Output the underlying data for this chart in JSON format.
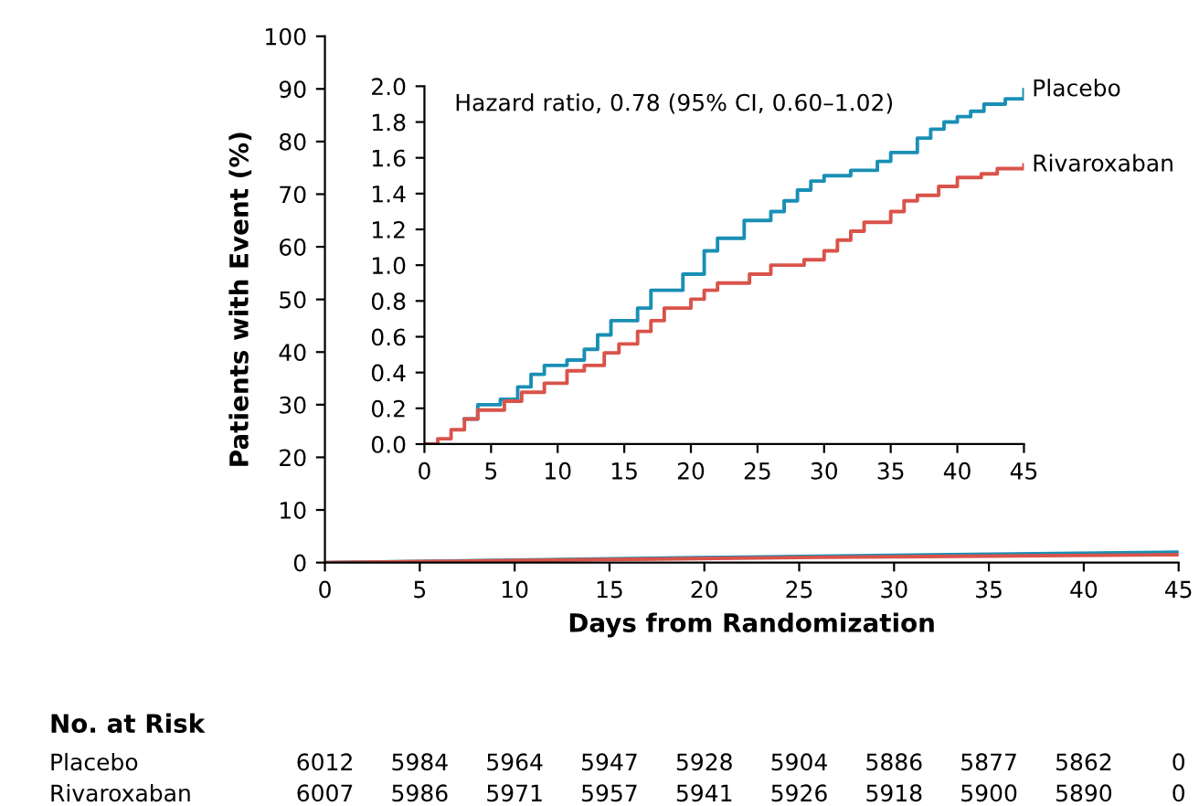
{
  "chart_data": [
    {
      "type": "step",
      "xlim": [
        0,
        45
      ],
      "xticks": [
        0,
        5,
        10,
        15,
        20,
        25,
        30,
        35,
        40,
        45
      ],
      "ylim": [
        0,
        2
      ],
      "yticks": [
        {
          "value": 0,
          "label": "0.0"
        },
        {
          "value": 0.2,
          "label": "0.2"
        },
        {
          "value": 0.4,
          "label": "0.4"
        },
        {
          "value": 0.6,
          "label": "0.6"
        },
        {
          "value": 0.8,
          "label": "0.8"
        },
        {
          "value": 1.0,
          "label": "1.0"
        },
        {
          "value": 1.2,
          "label": "1.2"
        },
        {
          "value": 1.4,
          "label": "1.4"
        },
        {
          "value": 1.6,
          "label": "1.6"
        },
        {
          "value": 1.8,
          "label": "1.8"
        },
        {
          "value": 2.0,
          "label": "2.0"
        }
      ],
      "series": [
        {
          "name": "Placebo",
          "color": "#1a8fb5",
          "x": [
            3,
            4,
            5.7,
            7,
            8,
            9,
            10.7,
            12,
            13,
            14,
            16,
            17,
            19.4,
            21,
            22,
            24,
            26,
            27,
            28,
            29,
            30,
            32,
            34,
            35,
            37,
            38,
            39,
            40,
            41,
            42,
            43.6,
            45
          ],
          "values": [
            0.14,
            0.22,
            0.25,
            0.32,
            0.39,
            0.44,
            0.47,
            0.53,
            0.61,
            0.69,
            0.76,
            0.86,
            0.95,
            1.08,
            1.15,
            1.25,
            1.3,
            1.36,
            1.42,
            1.47,
            1.5,
            1.53,
            1.58,
            1.63,
            1.71,
            1.76,
            1.8,
            1.83,
            1.86,
            1.9,
            1.93,
            1.98
          ]
        },
        {
          "name": "Rivaroxaban",
          "color": "#d9534a",
          "x": [
            0,
            1,
            2,
            3,
            4,
            6,
            7.3,
            9,
            10.7,
            12,
            13.5,
            14.6,
            16,
            17,
            18,
            20,
            21,
            22,
            24.4,
            26,
            28.5,
            30,
            31,
            32,
            33,
            35,
            36,
            37,
            38.6,
            40,
            41.8,
            43,
            45
          ],
          "values": [
            0,
            0.03,
            0.08,
            0.14,
            0.19,
            0.24,
            0.29,
            0.34,
            0.41,
            0.44,
            0.51,
            0.56,
            0.63,
            0.69,
            0.76,
            0.81,
            0.86,
            0.9,
            0.95,
            1.0,
            1.03,
            1.08,
            1.14,
            1.19,
            1.24,
            1.3,
            1.36,
            1.39,
            1.44,
            1.49,
            1.51,
            1.54,
            1.56
          ]
        }
      ],
      "annotations": [
        "Hazard ratio, 0.78 (95% CI, 0.60–1.02)"
      ]
    },
    {
      "type": "line",
      "xlabel": "Days from Randomization",
      "ylabel": "Patients with Event (%)",
      "xlim": [
        0,
        45
      ],
      "xticks": [
        0,
        5,
        10,
        15,
        20,
        25,
        30,
        35,
        40,
        45
      ],
      "ylim": [
        0,
        100
      ],
      "yticks": [
        0,
        10,
        20,
        30,
        40,
        50,
        60,
        70,
        80,
        90,
        100
      ],
      "series": [
        {
          "color": "#1a8fb5",
          "x": [
            0,
            21,
            45
          ],
          "values": [
            0,
            1,
            2
          ]
        },
        {
          "color": "#d9534a",
          "x": [
            0,
            26,
            45
          ],
          "values": [
            0,
            1,
            1.5
          ]
        }
      ],
      "annotations": [
        "No. at Risk",
        "Placebo",
        "6012",
        "5984",
        "5964",
        "5947",
        "5928",
        "5904",
        "5886",
        "5877",
        "5862",
        "0",
        "Rivaroxaban",
        "6007",
        "5986",
        "5971",
        "5957",
        "5941",
        "5926",
        "5918",
        "5900",
        "5890",
        "0"
      ]
    }
  ]
}
